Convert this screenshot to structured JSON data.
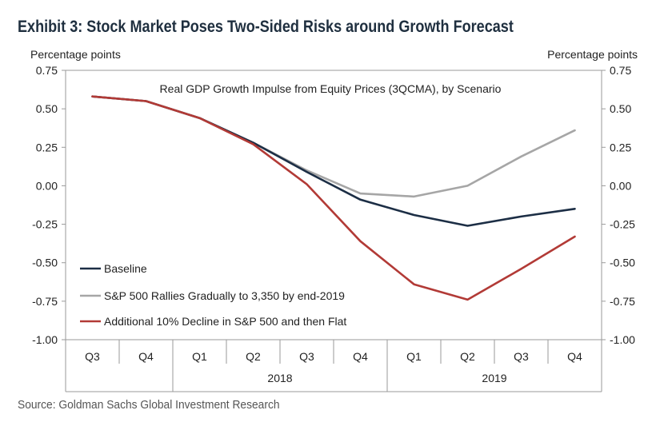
{
  "title": "Exhibit 3: Stock Market Poses Two-Sided Risks around Growth Forecast",
  "source": "Source: Goldman Sachs Global Investment Research",
  "chart_data": {
    "type": "line",
    "title": "Real GDP Growth Impulse from Equity Prices (3QCMA),  by Scenario",
    "ylabel_left": "Percentage points",
    "ylabel_right": "Percentage points",
    "ylim": [
      -1.0,
      0.75
    ],
    "yticks": [
      "0.75",
      "0.50",
      "0.25",
      "0.00",
      "-0.25",
      "-0.50",
      "-0.75",
      "-1.00"
    ],
    "ytick_values": [
      0.75,
      0.5,
      0.25,
      0.0,
      -0.25,
      -0.5,
      -0.75,
      -1.0
    ],
    "categories": [
      "Q3",
      "Q4",
      "Q1",
      "Q2",
      "Q3",
      "Q4",
      "Q1",
      "Q2",
      "Q3",
      "Q4"
    ],
    "year_groups": [
      {
        "label": "2018",
        "start": 2,
        "end": 5
      },
      {
        "label": "2019",
        "start": 6,
        "end": 9
      }
    ],
    "legend_position": "bottom-left",
    "series": [
      {
        "name": "Baseline",
        "color": "#1c2e45",
        "values": [
          0.58,
          0.55,
          0.44,
          0.28,
          0.09,
          -0.09,
          -0.19,
          -0.26,
          -0.2,
          -0.15
        ]
      },
      {
        "name": "S&P 500 Rallies Gradually to 3,350 by end-2019",
        "color": "#a6a6a6",
        "values": [
          0.58,
          0.55,
          0.44,
          0.28,
          0.1,
          -0.05,
          -0.07,
          0.0,
          0.19,
          0.36
        ]
      },
      {
        "name": "Additional 10% Decline in S&P 500 and then Flat",
        "color": "#b23a36",
        "values": [
          0.58,
          0.55,
          0.44,
          0.27,
          0.01,
          -0.36,
          -0.64,
          -0.74,
          -0.54,
          -0.33
        ]
      }
    ]
  }
}
